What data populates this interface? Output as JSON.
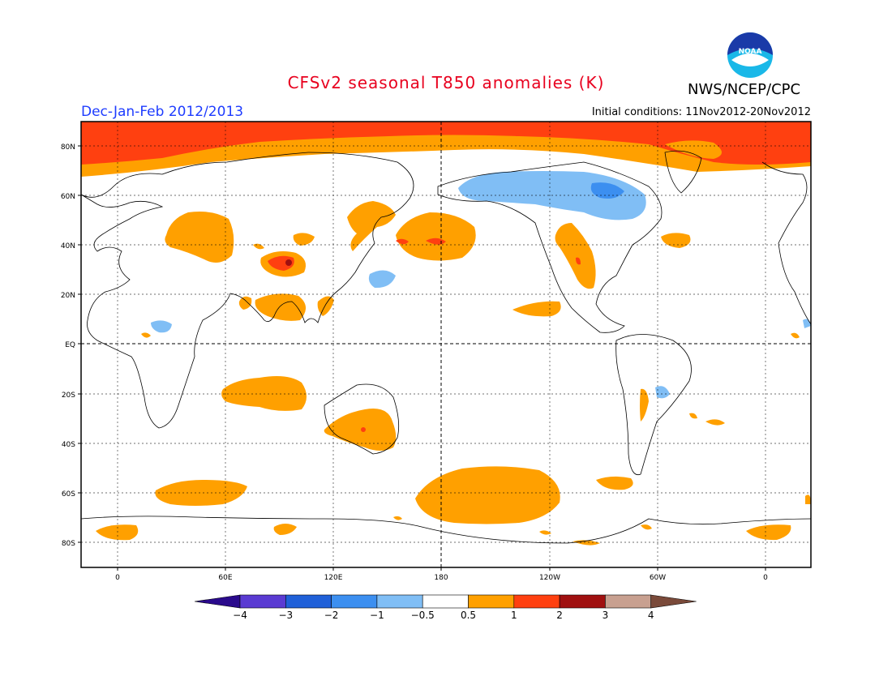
{
  "title": "CFSv2 seasonal T850 anomalies (K)",
  "organization": "NWS/NCEP/CPC",
  "season": "Dec-Jan-Feb 2012/2013",
  "initial_conditions": "Initial conditions: 11Nov2012-20Nov2012",
  "logo_text": "NOAA",
  "lat_labels": [
    "80N",
    "60N",
    "40N",
    "20N",
    "EQ",
    "20S",
    "40S",
    "60S",
    "80S"
  ],
  "lon_labels": [
    "0",
    "60E",
    "120E",
    "180",
    "120W",
    "60W",
    "0"
  ],
  "colorbar": {
    "labels": [
      "-4",
      "-3",
      "-2",
      "-1",
      "-0.5",
      "0.5",
      "1",
      "2",
      "3",
      "4"
    ],
    "colors": [
      "#2a0a8c",
      "#5a3bd2",
      "#2060d8",
      "#3c8ff0",
      "#80bef5",
      "#ffffff",
      "#ffa000",
      "#ff4010",
      "#a01010",
      "#c8a090",
      "#7a4a3a"
    ]
  },
  "anomaly_colors": {
    "warm_1": "#ffa000",
    "warm_2": "#ff4010",
    "warm_3": "#a01010",
    "cold_1": "#80bef5",
    "cold_2": "#3c8ff0",
    "title_color": "#e8001e",
    "season_color": "#1e3cff"
  }
}
